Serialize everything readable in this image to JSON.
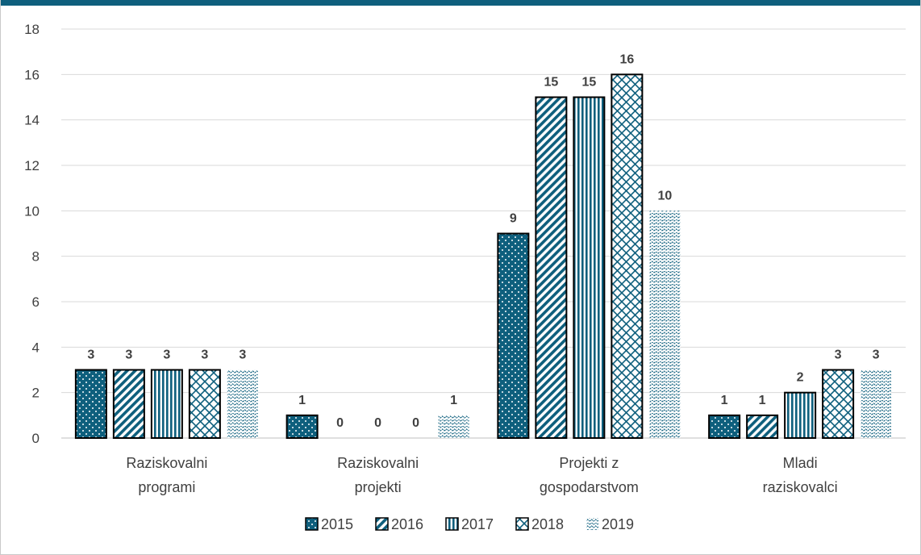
{
  "chart_data": {
    "type": "bar",
    "title": "",
    "xlabel": "",
    "ylabel": "",
    "ylim": [
      0,
      18
    ],
    "yticks": [
      0,
      2,
      4,
      6,
      8,
      10,
      12,
      14,
      16,
      18
    ],
    "grid": true,
    "legend_position": "bottom",
    "categories": [
      [
        "Raziskovalni",
        "programi"
      ],
      [
        "Raziskovalni",
        "projekti"
      ],
      [
        "Projekti z",
        "gospodarstvom"
      ],
      [
        "Mladi",
        "raziskovalci"
      ]
    ],
    "series": [
      {
        "name": "2015",
        "values": [
          3,
          1,
          9,
          1
        ],
        "pattern": "dots",
        "labels_bold": true
      },
      {
        "name": "2016",
        "values": [
          3,
          0,
          15,
          1
        ],
        "pattern": "diagonal",
        "labels_bold": true
      },
      {
        "name": "2017",
        "values": [
          3,
          0,
          15,
          2
        ],
        "pattern": "vertical",
        "labels_bold": true
      },
      {
        "name": "2018",
        "values": [
          3,
          0,
          16,
          3
        ],
        "pattern": "crosshatch",
        "labels_bold": true
      },
      {
        "name": "2019",
        "values": [
          3,
          1,
          10,
          3
        ],
        "pattern": "wave",
        "labels_bold": false
      }
    ],
    "colors": {
      "primary": "#0e5f7d",
      "grid": "#d9d9d9",
      "text": "#404040",
      "outline": "#000000"
    }
  }
}
